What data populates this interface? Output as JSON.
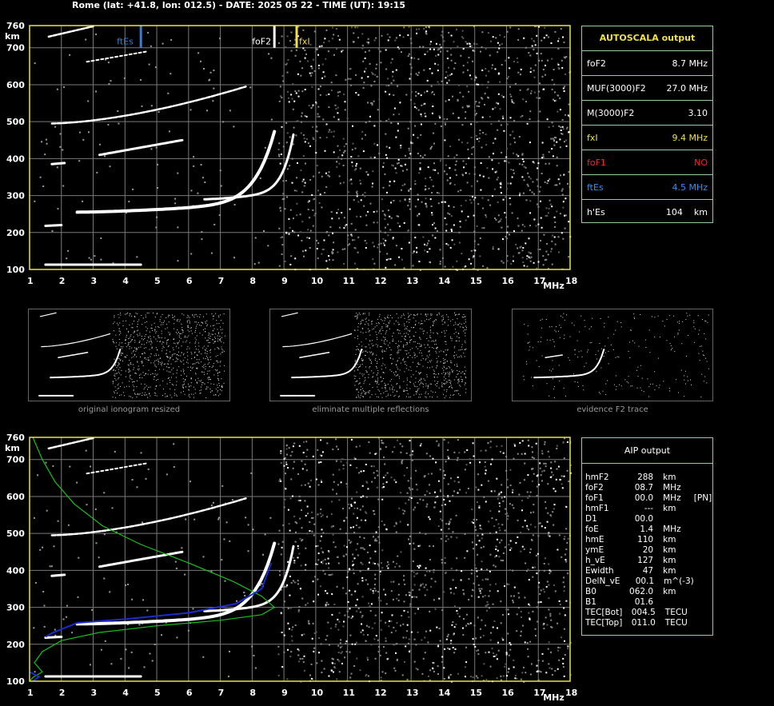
{
  "header": {
    "title": "Rome (lat: +41.8, lon: 012.5) - DATE: 2025 05 22 - TIME (UT): 19:15"
  },
  "axes": {
    "y_unit": "km",
    "x_unit": "MHz",
    "y_ticks": [
      "760",
      "700",
      "600",
      "500",
      "400",
      "300",
      "200",
      "100"
    ],
    "x_ticks": [
      "1",
      "2",
      "3",
      "4",
      "5",
      "6",
      "7",
      "8",
      "9",
      "10",
      "11",
      "12",
      "13",
      "14",
      "15",
      "16",
      "17",
      "18"
    ]
  },
  "markers": {
    "ftEs": "ftEs",
    "foF2": "foF2",
    "fxI": "fxI"
  },
  "autoscala": {
    "title": "AUTOSCALA output",
    "rows": [
      {
        "label": "foF2",
        "value": "8.7 MHz",
        "color": "#ffffff"
      },
      {
        "label": "MUF(3000)F2",
        "value": "27.0 MHz",
        "color": "#ffffff"
      },
      {
        "label": "M(3000)F2",
        "value": "3.10",
        "color": "#ffffff"
      },
      {
        "label": "fxI",
        "value": "9.4 MHz",
        "color": "#f0e040"
      },
      {
        "label": "foF1",
        "value": "NO",
        "color": "#ff2020"
      },
      {
        "label": "ftEs",
        "value": "4.5 MHz",
        "color": "#3090ff"
      },
      {
        "label": "h'Es",
        "value": "104    km",
        "color": "#ffffff"
      }
    ]
  },
  "thumbnails": [
    {
      "caption": "original ionogram resized"
    },
    {
      "caption": "eliminate multiple reflections"
    },
    {
      "caption": "evidence F2 trace"
    }
  ],
  "aip": {
    "title": "AIP output",
    "rows": [
      [
        "hmF2",
        "288",
        "km",
        ""
      ],
      [
        "foF2",
        "08.7",
        "MHz",
        ""
      ],
      [
        "foF1",
        "00.0",
        "MHz",
        "[PN]"
      ],
      [
        "hmF1",
        "---",
        "km",
        ""
      ],
      [
        "D1",
        "00.0",
        "",
        ""
      ],
      [
        "foE",
        "1.4",
        "MHz",
        ""
      ],
      [
        "hmE",
        "110",
        "km",
        ""
      ],
      [
        "ymE",
        "20",
        "km",
        ""
      ],
      [
        "h_vE",
        "127",
        "km",
        ""
      ],
      [
        "Ewidth",
        "47",
        "km",
        ""
      ],
      [
        "DelN_vE",
        "00.1",
        "m^(-3)",
        ""
      ],
      [
        "B0",
        "062.0",
        "km",
        ""
      ],
      [
        "B1",
        "01.6",
        "",
        ""
      ],
      [
        "TEC[Bot]",
        "004.5",
        "TECU",
        ""
      ],
      [
        "TEC[Top]",
        "011.0",
        "TECU",
        ""
      ]
    ]
  },
  "colors": {
    "frame": "#e6e64a",
    "grid": "#7a7a7a",
    "panel_border": "#9acd9a",
    "ftEs": "#2f7fe0",
    "fxI": "#f0e040",
    "profile": "#19c019",
    "fit": "#1a2bd0"
  }
}
